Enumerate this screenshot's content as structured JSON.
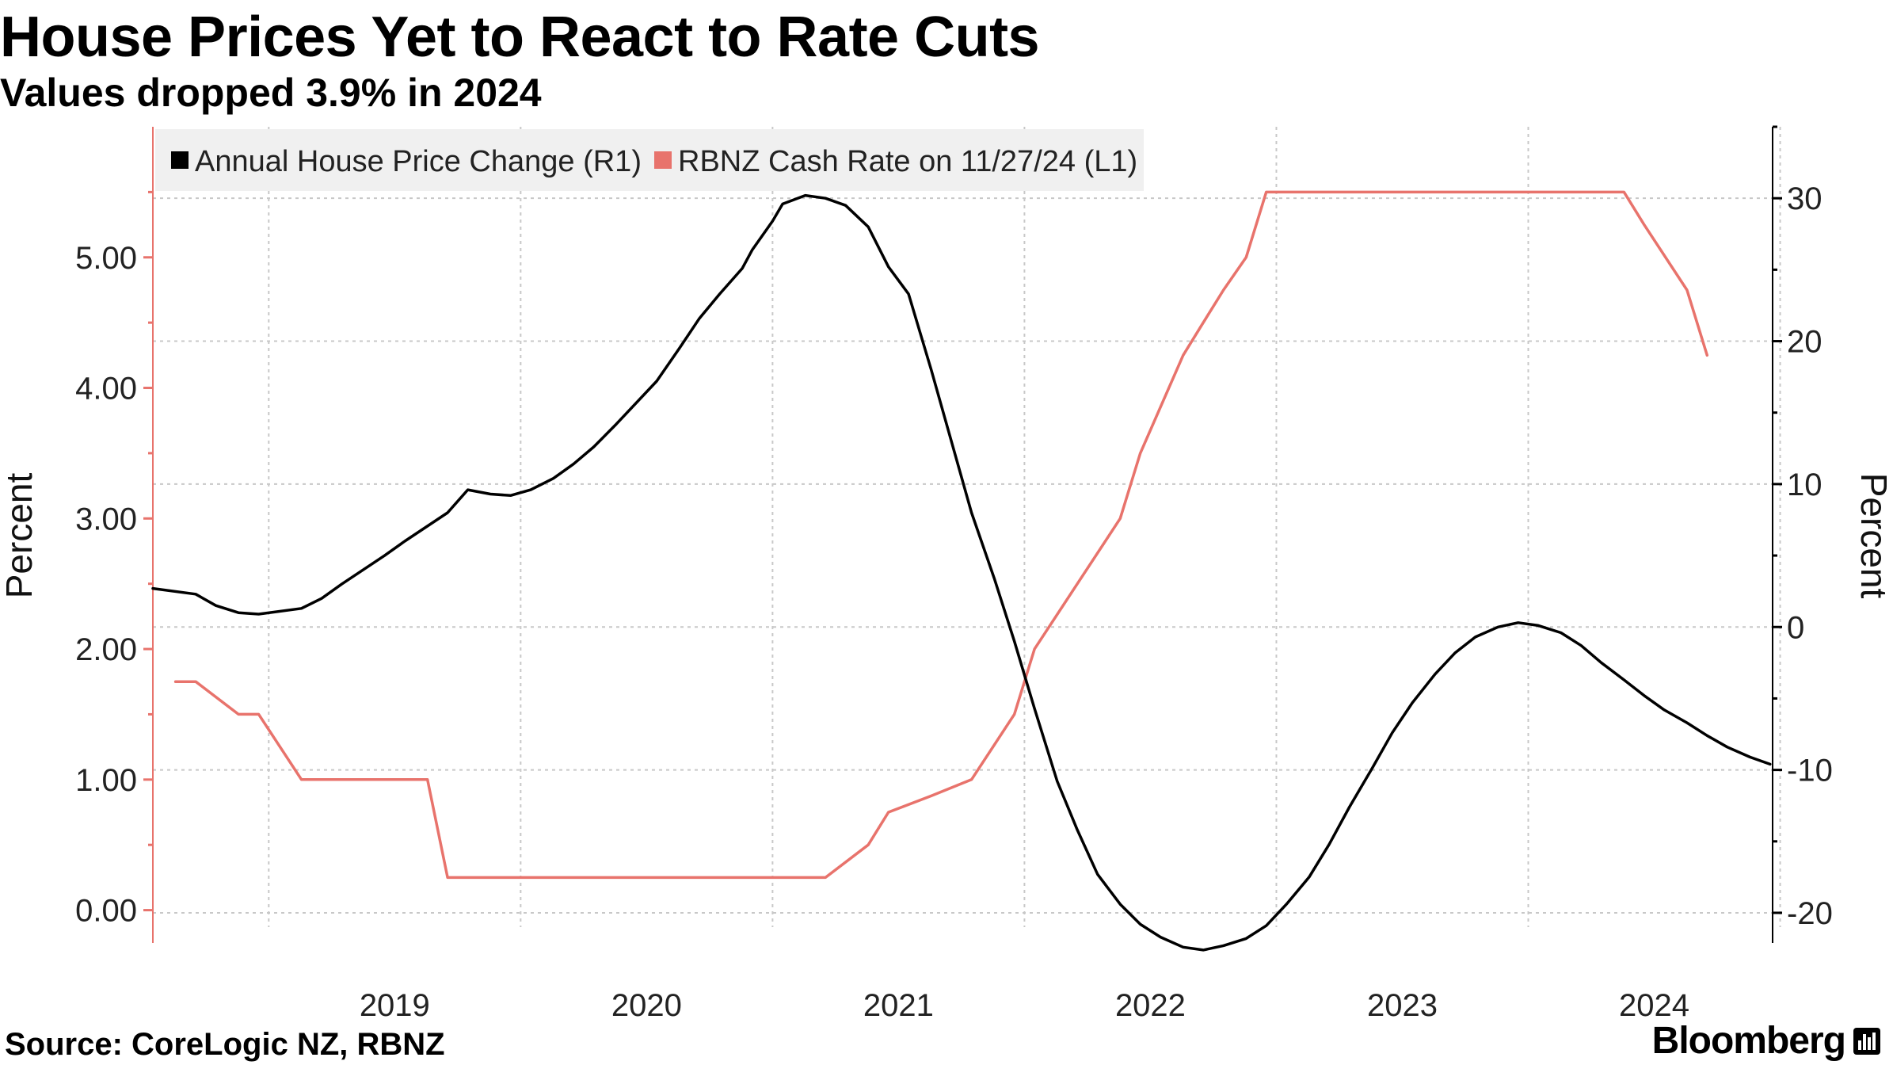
{
  "header": {
    "title": "House Prices Yet to React to Rate Cuts",
    "subtitle": "Values dropped 3.9% in 2024"
  },
  "footer": {
    "source": "Source: CoreLogic NZ, RBNZ",
    "brand": "Bloomberg"
  },
  "chart_data": {
    "type": "line",
    "left_axis": {
      "label": "Percent",
      "ticks": [
        "0.00",
        "1.00",
        "2.00",
        "3.00",
        "4.00",
        "5.00"
      ],
      "range": [
        -0.13,
        6.0
      ]
    },
    "right_axis": {
      "label": "Percent",
      "ticks": [
        "-20",
        "-10",
        "0",
        "10",
        "20",
        "30"
      ],
      "range": [
        -21,
        35
      ]
    },
    "x_axis": {
      "ticks": [
        "2019",
        "2020",
        "2021",
        "2022",
        "2023",
        "2024"
      ],
      "range": [
        2018.54,
        2024.97
      ]
    },
    "grid": true,
    "legend": {
      "placement": "top-left",
      "entries": [
        {
          "label": "Annual House Price Change (R1)",
          "color": "#000000"
        },
        {
          "label": "RBNZ Cash Rate on 11/27/24 (L1)",
          "color": "#e8736c"
        }
      ]
    },
    "series": [
      {
        "name": "RBNZ Cash Rate on 11/27/24 (L1)",
        "axis": "left",
        "color": "#e8736c",
        "x": [
          2018.63,
          2018.71,
          2018.88,
          2018.96,
          2019.13,
          2019.38,
          2019.63,
          2019.71,
          2019.96,
          2020.21,
          2020.46,
          2020.71,
          2020.96,
          2021.21,
          2021.38,
          2021.46,
          2021.63,
          2021.79,
          2021.96,
          2022.04,
          2022.21,
          2022.38,
          2022.46,
          2022.63,
          2022.71,
          2022.79,
          2022.88,
          2022.96,
          2023.13,
          2023.38,
          2023.63,
          2023.88,
          2024.13,
          2024.38,
          2024.46,
          2024.63,
          2024.71
        ],
        "values": [
          1.75,
          1.75,
          1.5,
          1.5,
          1.0,
          1.0,
          1.0,
          0.25,
          0.25,
          0.25,
          0.25,
          0.25,
          0.25,
          0.25,
          0.5,
          0.75,
          0.875,
          1.0,
          1.5,
          2.0,
          2.5,
          3.0,
          3.5,
          4.25,
          4.5,
          4.75,
          5.0,
          5.5,
          5.5,
          5.5,
          5.5,
          5.5,
          5.5,
          5.5,
          5.25,
          4.75,
          4.25
        ]
      },
      {
        "name": "Annual House Price Change (R1)",
        "axis": "right",
        "color": "#000000",
        "x": [
          2018.54,
          2018.71,
          2018.79,
          2018.88,
          2018.96,
          2019.13,
          2019.21,
          2019.29,
          2019.46,
          2019.54,
          2019.71,
          2019.79,
          2019.88,
          2019.96,
          2020.04,
          2020.13,
          2020.21,
          2020.29,
          2020.38,
          2020.54,
          2020.63,
          2020.71,
          2020.79,
          2020.88,
          2020.92,
          2021.0,
          2021.04,
          2021.13,
          2021.21,
          2021.29,
          2021.38,
          2021.46,
          2021.54,
          2021.63,
          2021.79,
          2021.88,
          2021.96,
          2022.04,
          2022.13,
          2022.21,
          2022.29,
          2022.38,
          2022.46,
          2022.54,
          2022.63,
          2022.71,
          2022.79,
          2022.88,
          2022.96,
          2023.04,
          2023.13,
          2023.21,
          2023.29,
          2023.38,
          2023.46,
          2023.54,
          2023.63,
          2023.71,
          2023.79,
          2023.88,
          2023.96,
          2024.04,
          2024.13,
          2024.21,
          2024.29,
          2024.38,
          2024.46,
          2024.54,
          2024.63,
          2024.71,
          2024.79,
          2024.88,
          2024.96
        ],
        "values": [
          2.7,
          2.3,
          1.5,
          1.0,
          0.9,
          1.3,
          2.0,
          3.0,
          5.0,
          6.0,
          8.0,
          9.6,
          9.3,
          9.2,
          9.6,
          10.4,
          11.4,
          12.6,
          14.2,
          17.2,
          19.5,
          21.6,
          23.3,
          25.1,
          26.4,
          28.4,
          29.6,
          30.2,
          30.0,
          29.5,
          28.0,
          25.2,
          23.3,
          18.0,
          8.0,
          3.4,
          -1.0,
          -5.7,
          -10.8,
          -14.2,
          -17.3,
          -19.4,
          -20.8,
          -21.7,
          -22.4,
          -22.6,
          -22.3,
          -21.8,
          -20.9,
          -19.4,
          -17.5,
          -15.2,
          -12.6,
          -9.9,
          -7.4,
          -5.3,
          -3.3,
          -1.8,
          -0.7,
          0.0,
          0.3,
          0.1,
          -0.4,
          -1.3,
          -2.5,
          -3.7,
          -4.8,
          -5.8,
          -6.7,
          -7.6,
          -8.4,
          -9.1,
          -9.6
        ]
      }
    ]
  }
}
